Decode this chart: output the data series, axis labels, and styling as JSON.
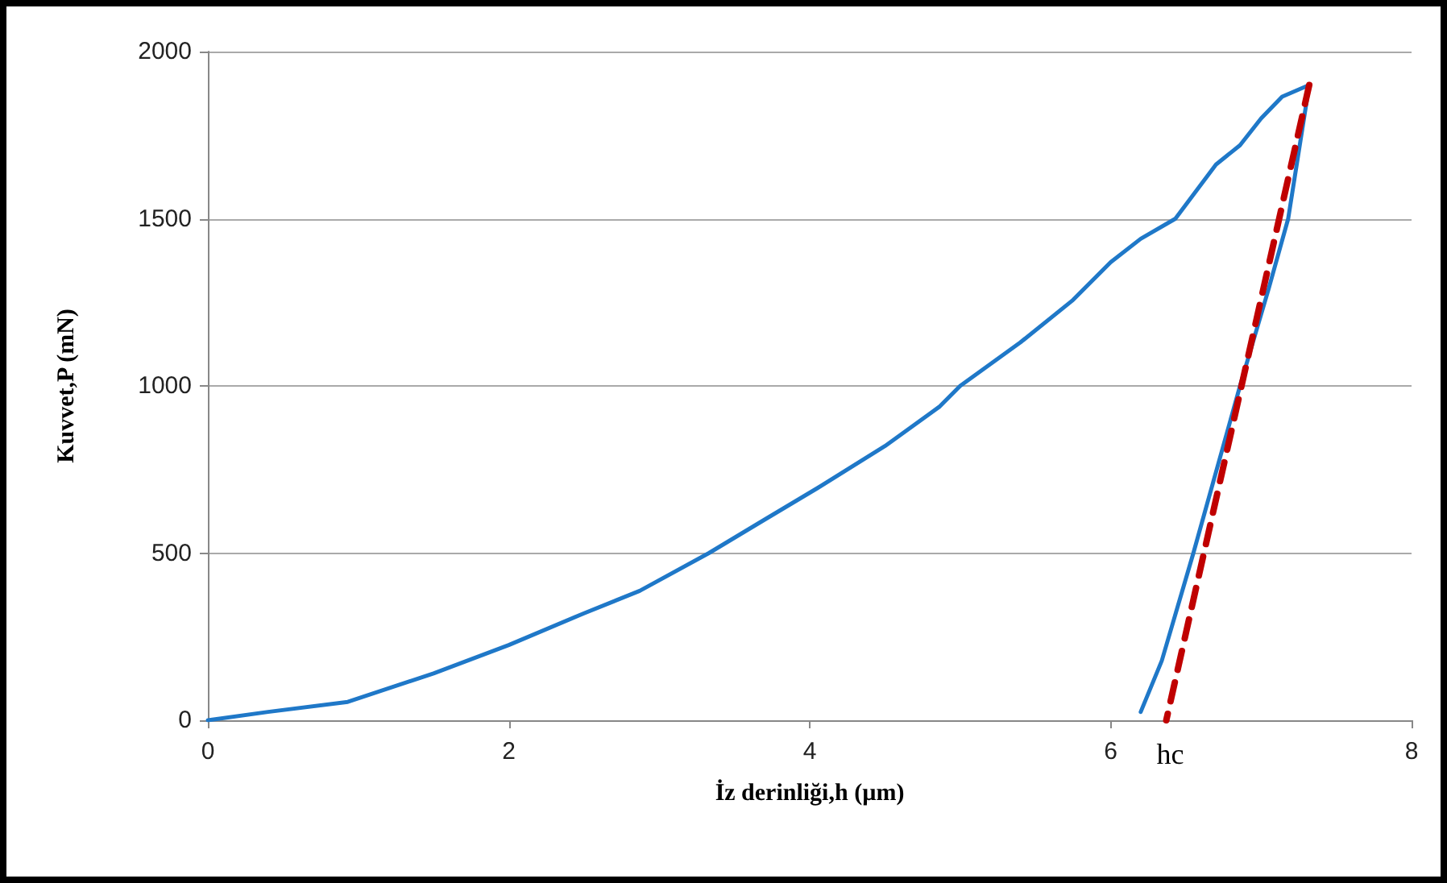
{
  "chart_data": {
    "type": "line",
    "xlabel": "İz derinliği,h (µm)",
    "ylabel": "Kuvvet,P (mN)",
    "xlim": [
      0,
      8
    ],
    "xticks": [
      0,
      2,
      4,
      6,
      8
    ],
    "ylim": [
      0,
      2000
    ],
    "yticks": [
      0,
      500,
      1000,
      1500,
      2000
    ],
    "grid": "y",
    "marker": "none",
    "annotations": [
      {
        "text": "hc",
        "x": 6.37,
        "y": 0
      }
    ],
    "series": [
      {
        "color": "#1f78c8",
        "line_style": "solid",
        "x": [
          0,
          0.4,
          0.93,
          1.5,
          2.0,
          2.5,
          2.87,
          3.33,
          3.7,
          4.05,
          4.5,
          4.86,
          5.0,
          5.4,
          5.75,
          6.0,
          6.2,
          6.43,
          6.7,
          6.86,
          7.0,
          7.14,
          7.32
        ],
        "values": [
          0,
          25,
          55,
          140,
          225,
          320,
          387,
          500,
          600,
          694,
          820,
          937,
          1000,
          1130,
          1257,
          1370,
          1440,
          1500,
          1662,
          1720,
          1800,
          1865,
          1900
        ]
      },
      {
        "color": "#1f78c8",
        "line_style": "solid",
        "x": [
          7.32,
          7.18,
          7.05,
          6.86,
          6.55,
          6.34,
          6.2
        ],
        "values": [
          1900,
          1500,
          1290,
          1000,
          500,
          178,
          25
        ]
      },
      {
        "color": "#c00000",
        "line_style": "dashed",
        "x": [
          7.32,
          6.37
        ],
        "values": [
          1900,
          0
        ]
      }
    ]
  }
}
